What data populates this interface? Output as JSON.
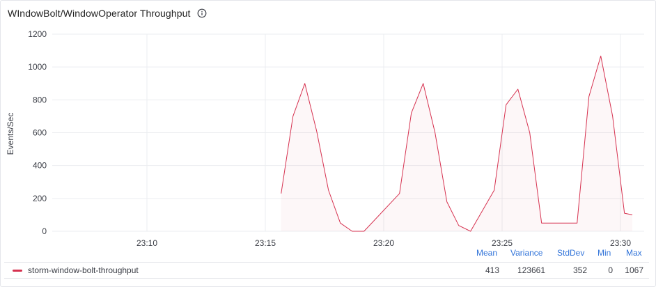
{
  "panel": {
    "title": "WIndowBolt/WindowOperator Throughput",
    "info_icon": "info-circle-icon"
  },
  "chart_data": {
    "type": "area",
    "title": "WIndowBolt/WindowOperator Throughput",
    "xlabel": "",
    "ylabel": "Events/Sec",
    "ylim": [
      0,
      1200
    ],
    "yticks": [
      "0",
      "200",
      "400",
      "600",
      "800",
      "1000",
      "1200"
    ],
    "xlim": [
      "23:06:00",
      "23:31:00"
    ],
    "xticks": [
      "23:10",
      "23:15",
      "23:20",
      "23:25",
      "23:30"
    ],
    "grid": true,
    "legend_position": "bottom",
    "series": [
      {
        "name": "storm-window-bolt-throughput",
        "color": "#d6314f",
        "x": [
          "23:15:40",
          "23:16:10",
          "23:16:40",
          "23:17:10",
          "23:17:40",
          "23:18:10",
          "23:18:40",
          "23:19:10",
          "23:20:40",
          "23:21:10",
          "23:21:40",
          "23:22:10",
          "23:22:40",
          "23:23:10",
          "23:23:40",
          "23:24:40",
          "23:25:10",
          "23:25:40",
          "23:26:10",
          "23:26:40",
          "23:27:10",
          "23:28:10",
          "23:28:40",
          "23:29:10",
          "23:29:40",
          "23:30:10",
          "23:30:30"
        ],
        "values": [
          230,
          700,
          900,
          610,
          250,
          50,
          0,
          0,
          230,
          720,
          900,
          600,
          180,
          35,
          0,
          250,
          770,
          865,
          600,
          50,
          50,
          50,
          820,
          1067,
          700,
          110,
          100
        ]
      }
    ]
  },
  "stats": {
    "headers": [
      "Mean",
      "Variance",
      "StdDev",
      "Min",
      "Max"
    ],
    "values": [
      "413",
      "123661",
      "352",
      "0",
      "1067"
    ]
  }
}
